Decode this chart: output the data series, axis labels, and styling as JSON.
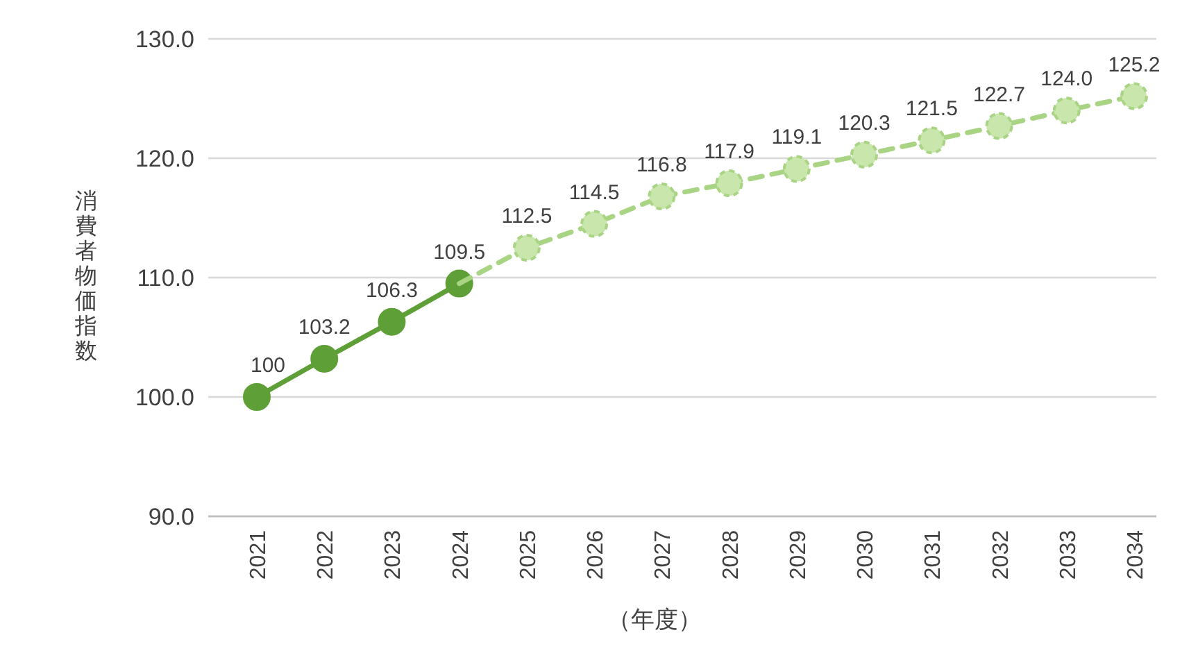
{
  "chart_data": {
    "type": "line",
    "ylabel": "消費者物価指数",
    "xlabel": "（年度）",
    "categories": [
      "2021",
      "2022",
      "2023",
      "2024",
      "2025",
      "2026",
      "2027",
      "2028",
      "2029",
      "2030",
      "2031",
      "2032",
      "2033",
      "2034"
    ],
    "ylim": [
      90,
      130
    ],
    "yticks": [
      {
        "value": 90,
        "label": "90.0"
      },
      {
        "value": 100,
        "label": "100.0"
      },
      {
        "value": 110,
        "label": "110.0"
      },
      {
        "value": 120,
        "label": "120.0"
      },
      {
        "value": 130,
        "label": "130.0"
      }
    ],
    "grid": "y",
    "marker": "circle",
    "series": [
      {
        "color": "#5e9f37",
        "line_style": "solid",
        "values": [
          100,
          103.2,
          106.3,
          109.5,
          null,
          null,
          null,
          null,
          null,
          null,
          null,
          null,
          null,
          null
        ],
        "value_labels": [
          "100",
          "103.2",
          "106.3",
          "109.5",
          null,
          null,
          null,
          null,
          null,
          null,
          null,
          null,
          null,
          null
        ]
      },
      {
        "color": "#a9d484",
        "line_style": "dashed",
        "values": [
          null,
          null,
          null,
          109.5,
          112.5,
          114.5,
          116.8,
          117.9,
          119.1,
          120.3,
          121.5,
          122.7,
          124.0,
          125.2
        ],
        "value_labels": [
          null,
          null,
          null,
          null,
          "112.5",
          "114.5",
          "116.8",
          "117.9",
          "119.1",
          "120.3",
          "121.5",
          "122.7",
          "124.0",
          "125.2"
        ]
      }
    ]
  }
}
